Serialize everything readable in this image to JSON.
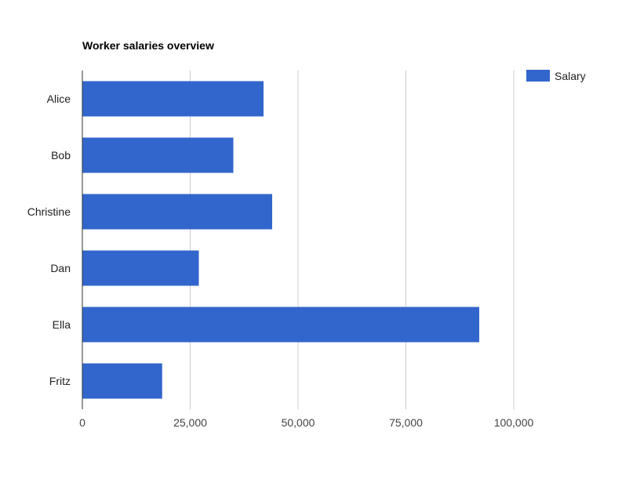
{
  "chart_data": {
    "type": "bar",
    "orientation": "horizontal",
    "title": "Worker salaries overview",
    "xlabel": "",
    "ylabel": "",
    "categories": [
      "Alice",
      "Bob",
      "Christine",
      "Dan",
      "Ella",
      "Fritz"
    ],
    "series": [
      {
        "name": "Salary",
        "color": "#3366cc",
        "values": [
          42000,
          35000,
          44000,
          27000,
          92000,
          18500
        ]
      }
    ],
    "xlim": [
      0,
      125000
    ],
    "x_ticks": [
      0,
      25000,
      50000,
      75000,
      100000
    ],
    "x_tick_labels": [
      "0",
      "25,000",
      "50,000",
      "75,000",
      "100,000"
    ],
    "grid": true,
    "legend": "top-right"
  }
}
